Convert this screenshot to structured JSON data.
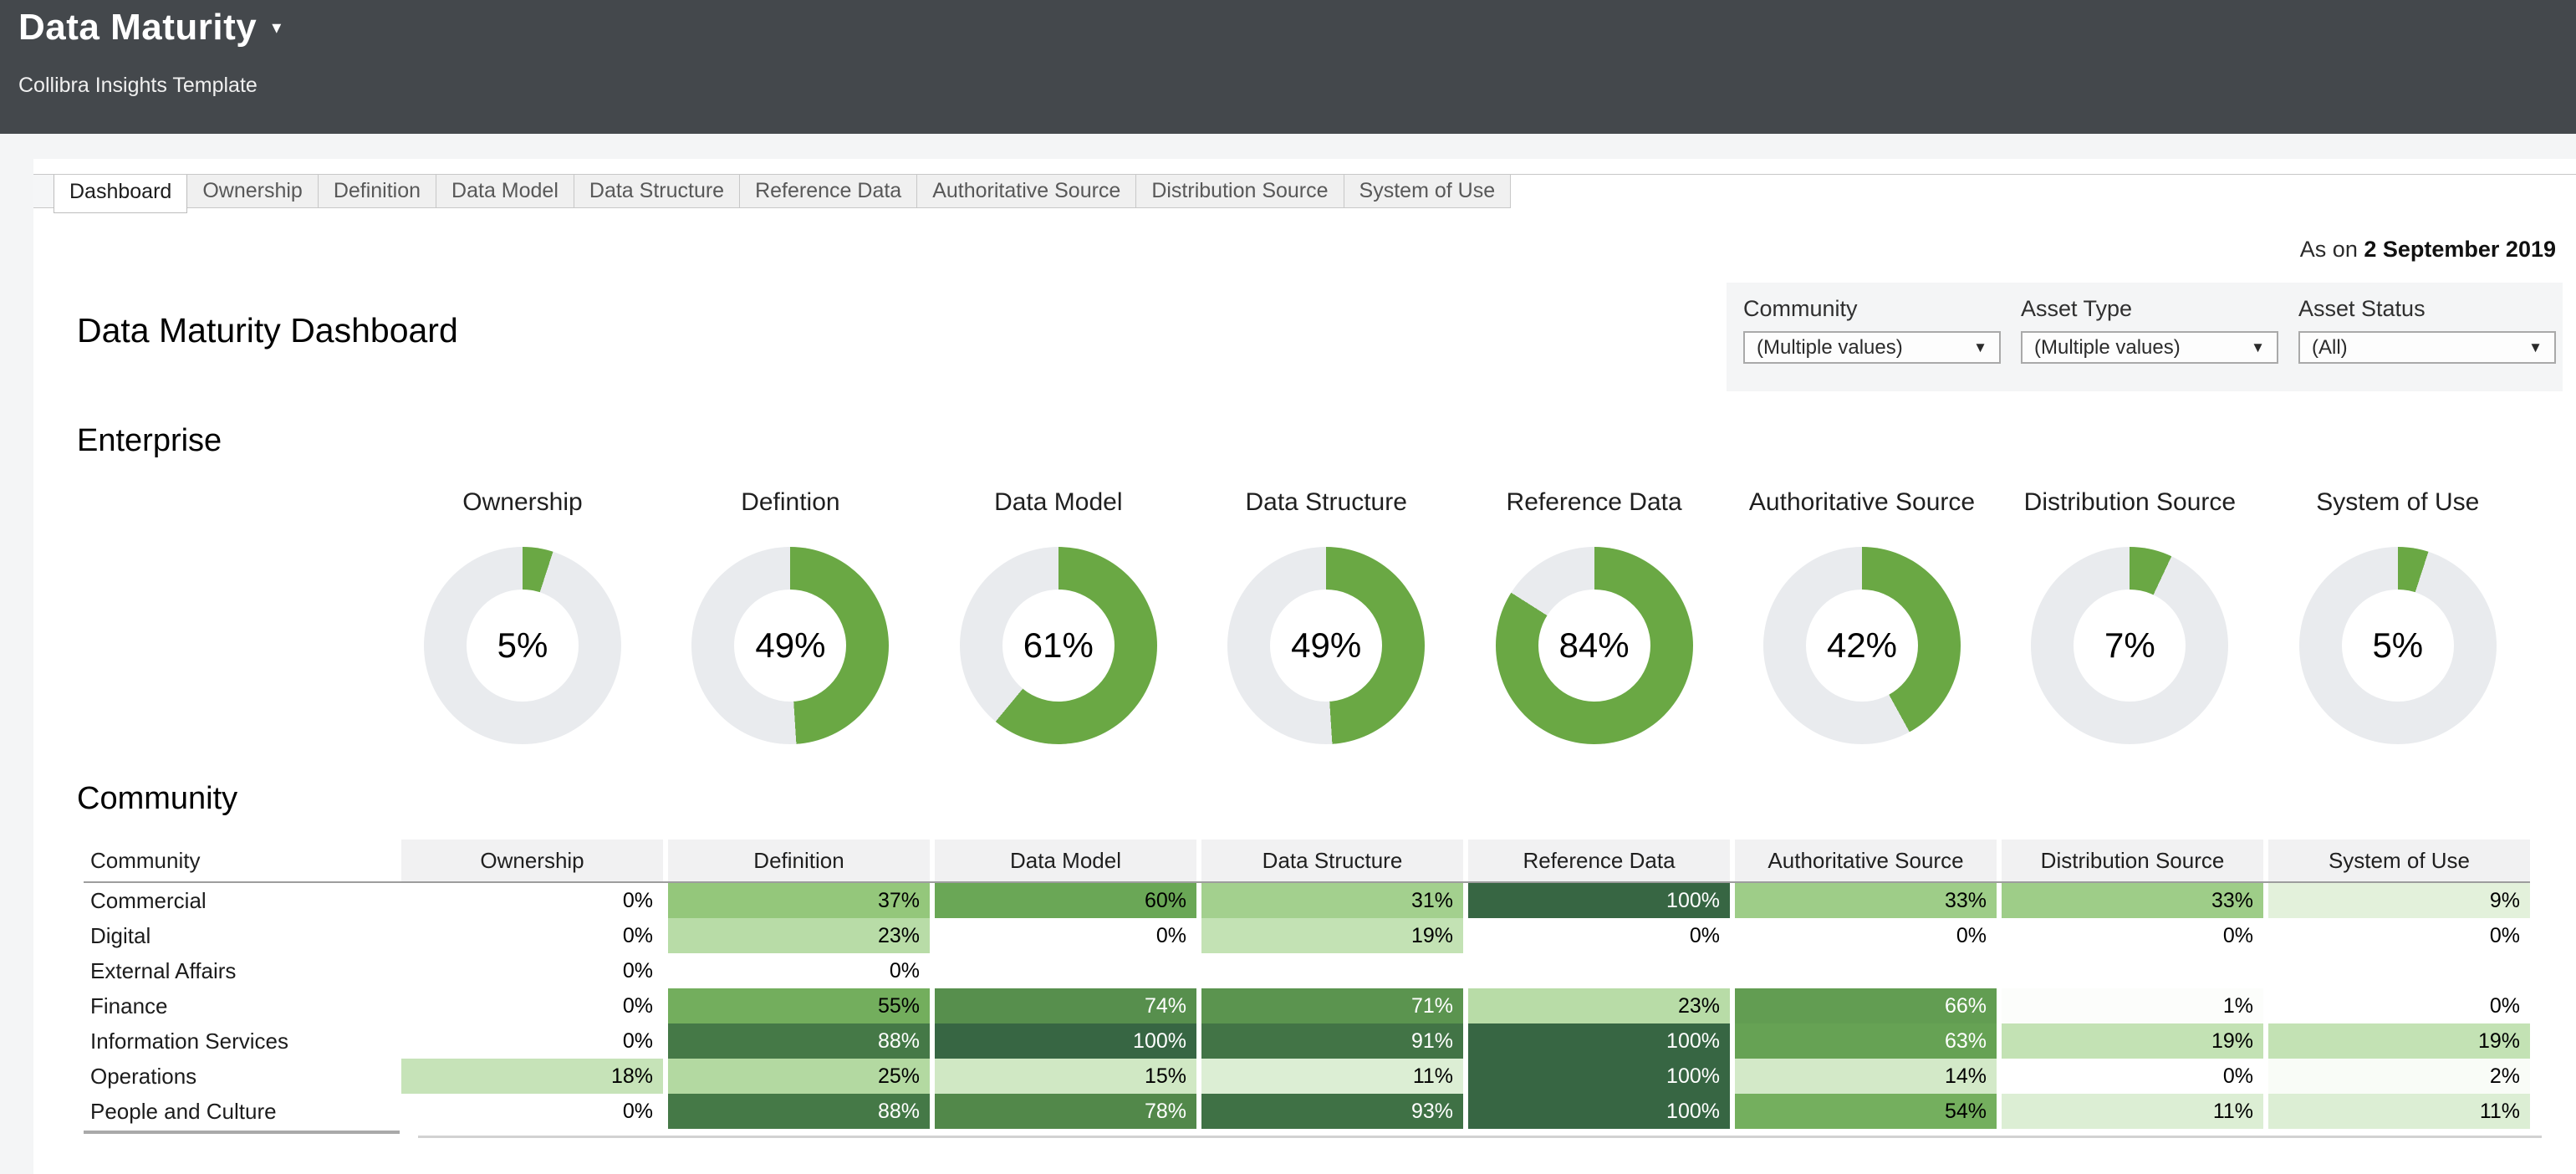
{
  "header": {
    "title": "Data Maturity",
    "subtitle": "Collibra Insights Template"
  },
  "icons": {
    "title_caret": "▾",
    "dropdown_caret": "▼"
  },
  "tabs": {
    "items": [
      {
        "label": "Dashboard",
        "active": true
      },
      {
        "label": "Ownership",
        "active": false
      },
      {
        "label": "Definition",
        "active": false
      },
      {
        "label": "Data Model",
        "active": false
      },
      {
        "label": "Data Structure",
        "active": false
      },
      {
        "label": "Reference Data",
        "active": false
      },
      {
        "label": "Authoritative Source",
        "active": false
      },
      {
        "label": "Distribution Source",
        "active": false
      },
      {
        "label": "System of Use",
        "active": false
      }
    ]
  },
  "meta": {
    "as_on_prefix": "As on",
    "as_on_date": "2 September 2019"
  },
  "filters": {
    "items": [
      {
        "label": "Community",
        "value": "(Multiple values)"
      },
      {
        "label": "Asset Type",
        "value": "(Multiple values)"
      },
      {
        "label": "Asset Status",
        "value": "(All)"
      }
    ]
  },
  "page": {
    "title": "Data Maturity Dashboard"
  },
  "sections": {
    "enterprise": "Enterprise",
    "community": "Community"
  },
  "colors": {
    "accent_green": "#6aa844",
    "donut_track": "#e9ebee",
    "header_bg": "#44484c",
    "white_text_threshold": 62,
    "heat_scale": [
      {
        "stop": 0,
        "color": "#ffffff"
      },
      {
        "stop": 20,
        "color": "#c0e0b0"
      },
      {
        "stop": 40,
        "color": "#8cc272"
      },
      {
        "stop": 60,
        "color": "#6aa756"
      },
      {
        "stop": 80,
        "color": "#4f8549"
      },
      {
        "stop": 100,
        "color": "#376643"
      }
    ]
  },
  "chart_data": [
    {
      "type": "pie",
      "subtype": "donut-kpi-row",
      "section": "Enterprise",
      "value_suffix": "%",
      "metrics": [
        {
          "label": "Ownership",
          "value": 5
        },
        {
          "label": "Defintion",
          "value": 49
        },
        {
          "label": "Data Model",
          "value": 61
        },
        {
          "label": "Data Structure",
          "value": 49
        },
        {
          "label": "Reference Data",
          "value": 84
        },
        {
          "label": "Authoritative Source",
          "value": 42
        },
        {
          "label": "Distribution Source",
          "value": 7
        },
        {
          "label": "System of Use",
          "value": 5
        }
      ]
    },
    {
      "type": "heatmap",
      "section": "Community",
      "value_suffix": "%",
      "columns": [
        "Community",
        "Ownership",
        "Definition",
        "Data Model",
        "Data Structure",
        "Reference Data",
        "Authoritative Source",
        "Distribution Source",
        "System of Use"
      ],
      "rows": [
        {
          "label": "Commercial",
          "values": [
            0,
            37,
            60,
            31,
            100,
            33,
            33,
            9
          ]
        },
        {
          "label": "Digital",
          "values": [
            0,
            23,
            0,
            19,
            0,
            0,
            0,
            0
          ]
        },
        {
          "label": "External Affairs",
          "values": [
            0,
            0,
            null,
            null,
            null,
            null,
            null,
            null
          ]
        },
        {
          "label": "Finance",
          "values": [
            0,
            55,
            74,
            71,
            23,
            66,
            1,
            0
          ]
        },
        {
          "label": "Information Services",
          "values": [
            0,
            88,
            100,
            91,
            100,
            63,
            19,
            19
          ]
        },
        {
          "label": "Operations",
          "values": [
            18,
            25,
            15,
            11,
            100,
            14,
            0,
            2
          ]
        },
        {
          "label": "People and Culture",
          "values": [
            0,
            88,
            78,
            93,
            100,
            54,
            11,
            11
          ]
        }
      ]
    }
  ]
}
